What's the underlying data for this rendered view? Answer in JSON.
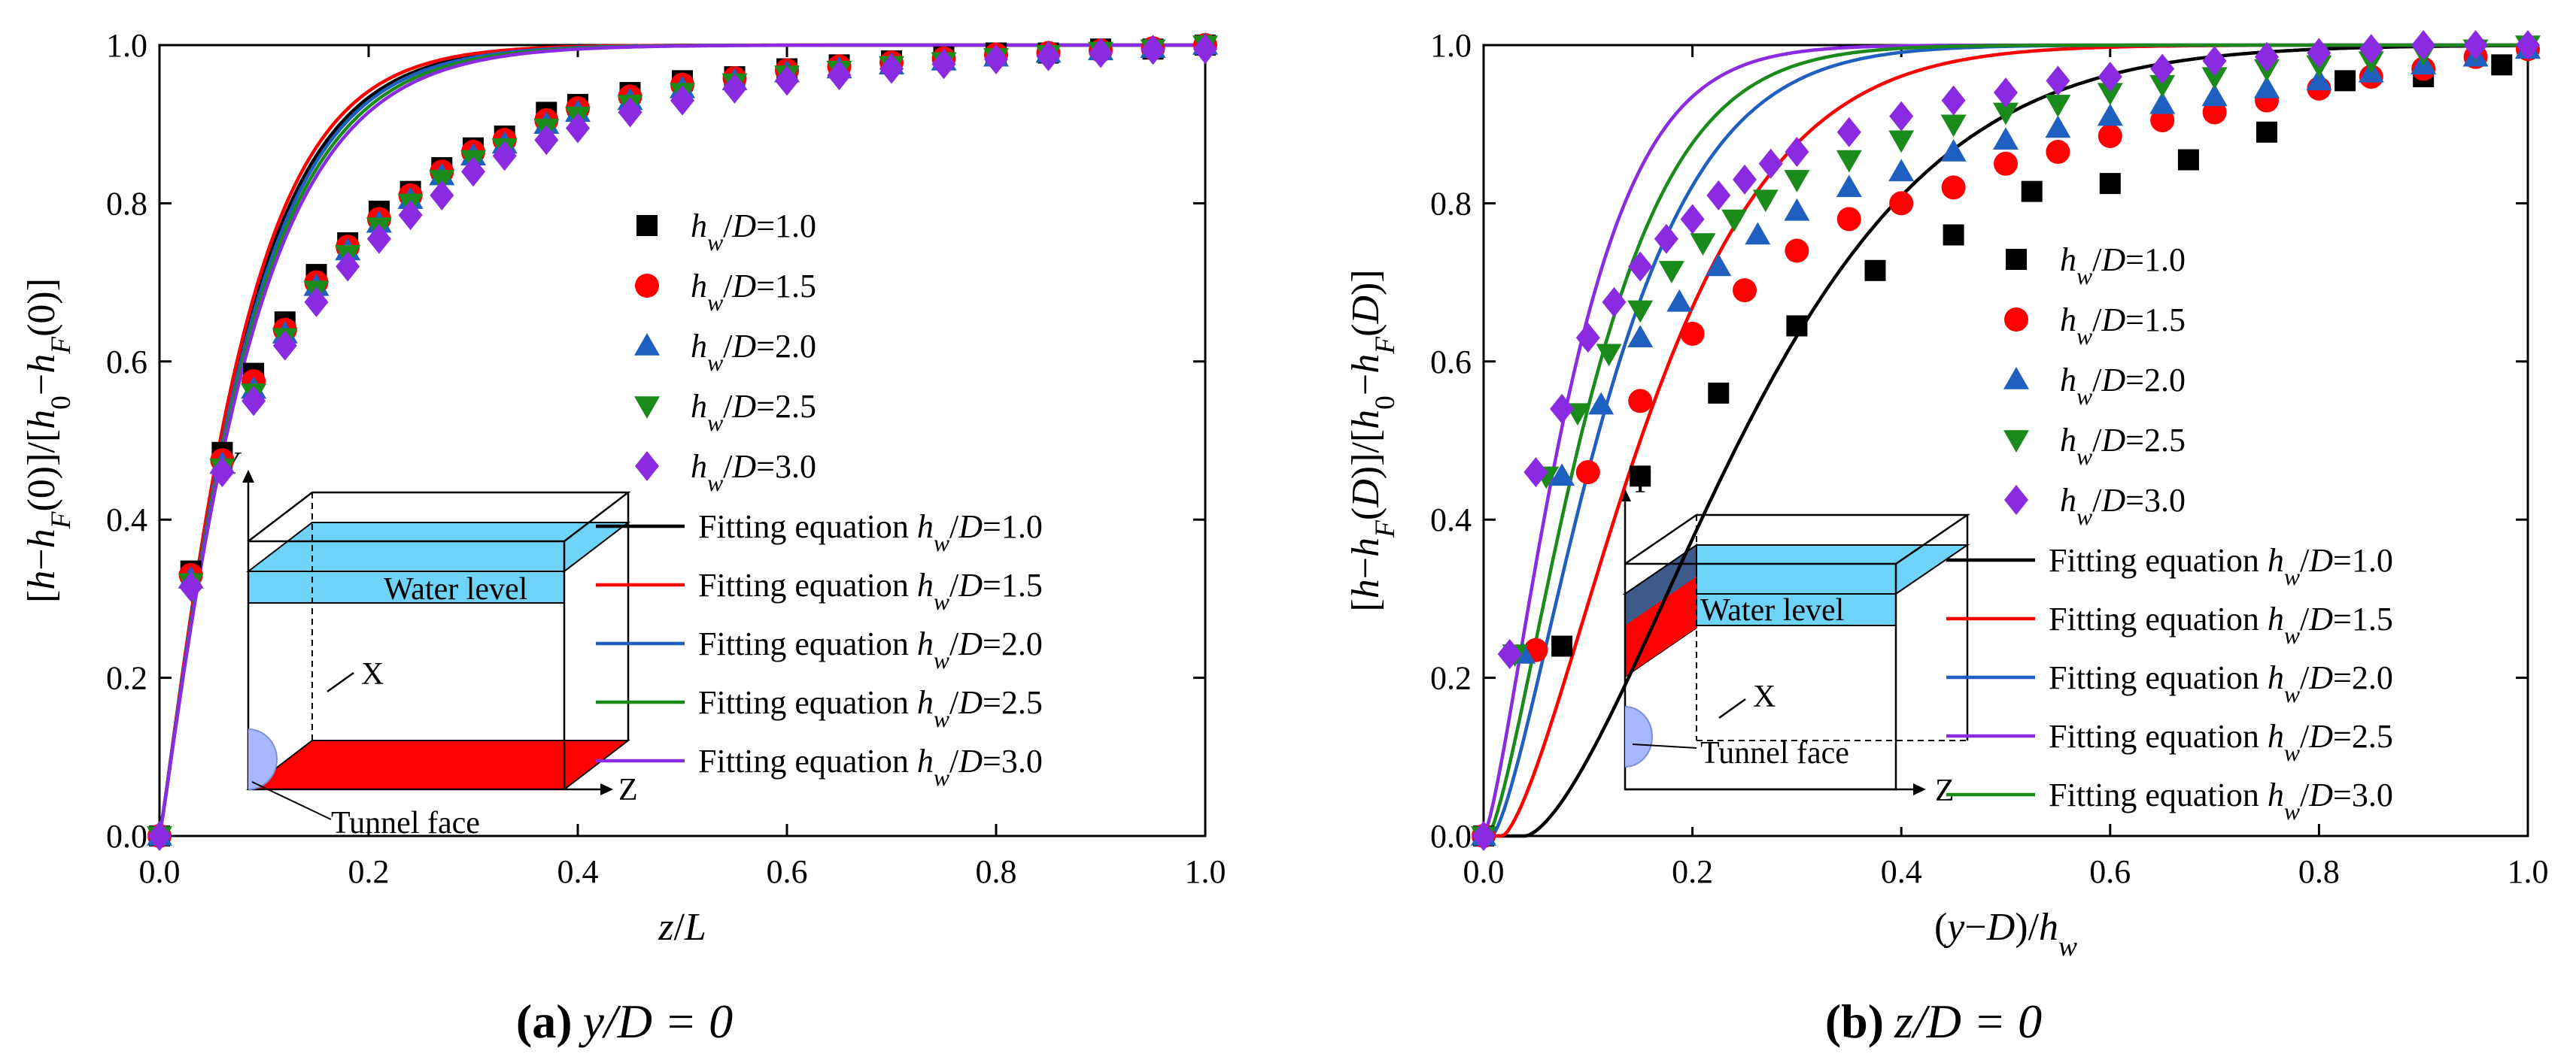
{
  "chart_data": [
    {
      "type": "line",
      "caption": {
        "letter": "(a)",
        "expr": "y/D = 0"
      },
      "xlabel": "z/L",
      "ylabel": "[h−hF(0)]/[h0−hF(0)]",
      "xlim": [
        0,
        1
      ],
      "ylim": [
        0,
        1
      ],
      "xticks": [
        "0.0",
        "0.2",
        "0.4",
        "0.6",
        "0.8",
        "1.0"
      ],
      "yticks": [
        "0.0",
        "0.2",
        "0.4",
        "0.6",
        "0.8",
        "1.0"
      ],
      "legend_position": "right",
      "scatter_series": [
        {
          "name": "hw/D=1.0",
          "label": "hw/D=1.0",
          "color": "#000000",
          "marker": "square",
          "x": [
            0,
            0.03,
            0.06,
            0.09,
            0.12,
            0.15,
            0.18,
            0.21,
            0.24,
            0.27,
            0.3,
            0.33,
            0.37,
            0.4,
            0.45,
            0.5,
            0.55,
            0.6,
            0.65,
            0.7,
            0.75,
            0.8,
            0.85,
            0.9,
            0.95,
            1.0
          ],
          "y": [
            0,
            0.335,
            0.485,
            0.585,
            0.65,
            0.71,
            0.75,
            0.79,
            0.815,
            0.845,
            0.87,
            0.885,
            0.915,
            0.925,
            0.94,
            0.955,
            0.96,
            0.97,
            0.975,
            0.98,
            0.985,
            0.99,
            0.99,
            0.995,
            0.995,
            1.0
          ]
        },
        {
          "name": "hw/D=1.5",
          "label": "hw/D=1.5",
          "color": "#ff0000",
          "marker": "circle",
          "x": [
            0,
            0.03,
            0.06,
            0.09,
            0.12,
            0.15,
            0.18,
            0.21,
            0.24,
            0.27,
            0.3,
            0.33,
            0.37,
            0.4,
            0.45,
            0.5,
            0.55,
            0.6,
            0.65,
            0.7,
            0.75,
            0.8,
            0.85,
            0.9,
            0.95,
            1.0
          ],
          "y": [
            0,
            0.33,
            0.475,
            0.575,
            0.64,
            0.7,
            0.745,
            0.78,
            0.81,
            0.84,
            0.865,
            0.88,
            0.905,
            0.92,
            0.935,
            0.95,
            0.958,
            0.968,
            0.973,
            0.978,
            0.983,
            0.988,
            0.99,
            0.993,
            0.996,
            1.0
          ]
        },
        {
          "name": "hw/D=2.0",
          "label": "hw/D=2.0",
          "color": "#1f5fbf",
          "marker": "triangle-up",
          "x": [
            0,
            0.03,
            0.06,
            0.09,
            0.12,
            0.15,
            0.18,
            0.21,
            0.24,
            0.27,
            0.3,
            0.33,
            0.37,
            0.4,
            0.45,
            0.5,
            0.55,
            0.6,
            0.65,
            0.7,
            0.75,
            0.8,
            0.85,
            0.9,
            0.95,
            1.0
          ],
          "y": [
            0,
            0.325,
            0.47,
            0.565,
            0.635,
            0.695,
            0.74,
            0.775,
            0.805,
            0.835,
            0.86,
            0.875,
            0.9,
            0.915,
            0.93,
            0.945,
            0.955,
            0.965,
            0.97,
            0.975,
            0.98,
            0.985,
            0.99,
            0.993,
            0.996,
            1.0
          ]
        },
        {
          "name": "hw/D=2.5",
          "label": "hw/D=2.5",
          "color": "#1a8a1a",
          "marker": "triangle-down",
          "x": [
            0,
            0.03,
            0.06,
            0.09,
            0.12,
            0.15,
            0.18,
            0.21,
            0.24,
            0.27,
            0.3,
            0.33,
            0.37,
            0.4,
            0.45,
            0.5,
            0.55,
            0.6,
            0.65,
            0.7,
            0.75,
            0.8,
            0.85,
            0.9,
            0.95,
            1.0
          ],
          "y": [
            0,
            0.32,
            0.465,
            0.56,
            0.63,
            0.69,
            0.735,
            0.77,
            0.8,
            0.83,
            0.855,
            0.87,
            0.895,
            0.91,
            0.925,
            0.94,
            0.952,
            0.962,
            0.968,
            0.974,
            0.979,
            0.984,
            0.988,
            0.992,
            0.995,
            1.0
          ]
        },
        {
          "name": "hw/D=3.0",
          "label": "hw/D=3.0",
          "color": "#8a2be2",
          "marker": "diamond",
          "x": [
            0,
            0.03,
            0.06,
            0.09,
            0.12,
            0.15,
            0.18,
            0.21,
            0.24,
            0.27,
            0.3,
            0.33,
            0.37,
            0.4,
            0.45,
            0.5,
            0.55,
            0.6,
            0.65,
            0.7,
            0.75,
            0.8,
            0.85,
            0.9,
            0.95,
            1.0
          ],
          "y": [
            0,
            0.315,
            0.46,
            0.55,
            0.62,
            0.675,
            0.72,
            0.755,
            0.785,
            0.81,
            0.84,
            0.86,
            0.88,
            0.895,
            0.915,
            0.93,
            0.945,
            0.955,
            0.962,
            0.97,
            0.976,
            0.982,
            0.986,
            0.99,
            0.994,
            0.995
          ]
        }
      ],
      "line_series": [
        {
          "name": "Fitting equation hw/D=1.0",
          "label": "Fitting equation hw/D=1.0",
          "color": "#000000",
          "a": 0.082,
          "b": 1.12,
          "shift": 0
        },
        {
          "name": "Fitting equation hw/D=1.5",
          "label": "Fitting equation hw/D=1.5",
          "color": "#ff0000",
          "a": 0.08,
          "b": 1.14,
          "shift": 0
        },
        {
          "name": "Fitting equation hw/D=2.0",
          "label": "Fitting equation hw/D=2.0",
          "color": "#1f5fbf",
          "a": 0.084,
          "b": 1.12,
          "shift": 0
        },
        {
          "name": "Fitting equation hw/D=2.5",
          "label": "Fitting equation hw/D=2.5",
          "color": "#1a8a1a",
          "a": 0.086,
          "b": 1.11,
          "shift": 0
        },
        {
          "name": "Fitting equation hw/D=3.0",
          "label": "Fitting equation hw/D=3.0",
          "color": "#8a2be2",
          "a": 0.088,
          "b": 1.1,
          "shift": 0
        }
      ],
      "inset": {
        "water_level": "Water level",
        "axis_y": "Y",
        "axis_x": "X",
        "axis_z": "Z",
        "face_label": "Tunnel face"
      }
    },
    {
      "type": "line",
      "caption": {
        "letter": "(b)",
        "expr": "z/D = 0"
      },
      "xlabel": "(y−D)/hw",
      "ylabel": "[h−hF(D)]/[h0−hF(D)]",
      "xlim": [
        0,
        1
      ],
      "ylim": [
        0,
        1
      ],
      "xticks": [
        "0.0",
        "0.2",
        "0.4",
        "0.6",
        "0.8",
        "1.0"
      ],
      "yticks": [
        "0.0",
        "0.2",
        "0.4",
        "0.6",
        "0.8",
        "1.0"
      ],
      "legend_position": "right",
      "scatter_series": [
        {
          "name": "hw/D=1.0",
          "label": "hw/D=1.0",
          "color": "#000000",
          "marker": "square",
          "x": [
            0,
            0.075,
            0.15,
            0.225,
            0.3,
            0.375,
            0.45,
            0.525,
            0.6,
            0.675,
            0.75,
            0.825,
            0.9,
            0.975
          ],
          "y": [
            0,
            0.24,
            0.455,
            0.56,
            0.645,
            0.715,
            0.76,
            0.815,
            0.825,
            0.855,
            0.89,
            0.955,
            0.96,
            0.975
          ]
        },
        {
          "name": "hw/D=1.5",
          "label": "hw/D=1.5",
          "color": "#ff0000",
          "marker": "circle",
          "x": [
            0,
            0.05,
            0.1,
            0.15,
            0.2,
            0.25,
            0.3,
            0.35,
            0.4,
            0.45,
            0.5,
            0.55,
            0.6,
            0.65,
            0.7,
            0.75,
            0.8,
            0.85,
            0.9,
            0.95,
            1.0
          ],
          "y": [
            0,
            0.235,
            0.46,
            0.55,
            0.635,
            0.69,
            0.74,
            0.78,
            0.8,
            0.82,
            0.85,
            0.865,
            0.885,
            0.905,
            0.915,
            0.93,
            0.945,
            0.96,
            0.97,
            0.985,
            0.995
          ]
        },
        {
          "name": "hw/D=2.0",
          "label": "hw/D=2.0",
          "color": "#1f5fbf",
          "marker": "triangle-up",
          "x": [
            0,
            0.0375,
            0.075,
            0.1125,
            0.15,
            0.1875,
            0.225,
            0.2625,
            0.3,
            0.35,
            0.4,
            0.45,
            0.5,
            0.55,
            0.6,
            0.65,
            0.7,
            0.75,
            0.8,
            0.85,
            0.9,
            0.95,
            1.0
          ],
          "y": [
            0,
            0.23,
            0.455,
            0.545,
            0.63,
            0.675,
            0.72,
            0.76,
            0.79,
            0.82,
            0.84,
            0.865,
            0.88,
            0.895,
            0.91,
            0.925,
            0.935,
            0.945,
            0.955,
            0.965,
            0.975,
            0.985,
            0.995
          ]
        },
        {
          "name": "hw/D=2.5",
          "label": "hw/D=2.5",
          "color": "#1a8a1a",
          "marker": "triangle-down",
          "x": [
            0,
            0.03,
            0.06,
            0.09,
            0.12,
            0.15,
            0.18,
            0.21,
            0.24,
            0.27,
            0.3,
            0.35,
            0.4,
            0.45,
            0.5,
            0.55,
            0.6,
            0.65,
            0.7,
            0.75,
            0.8,
            0.85,
            0.9,
            0.95,
            1.0
          ],
          "y": [
            0,
            0.23,
            0.455,
            0.535,
            0.61,
            0.665,
            0.715,
            0.75,
            0.78,
            0.805,
            0.83,
            0.855,
            0.88,
            0.9,
            0.915,
            0.925,
            0.94,
            0.95,
            0.96,
            0.97,
            0.975,
            0.98,
            0.99,
            0.995,
            1.0
          ]
        },
        {
          "name": "hw/D=3.0",
          "label": "hw/D=3.0",
          "color": "#8a2be2",
          "marker": "diamond",
          "x": [
            0,
            0.025,
            0.05,
            0.075,
            0.1,
            0.125,
            0.15,
            0.175,
            0.2,
            0.225,
            0.25,
            0.275,
            0.3,
            0.35,
            0.4,
            0.45,
            0.5,
            0.55,
            0.6,
            0.65,
            0.7,
            0.75,
            0.8,
            0.85,
            0.9,
            0.95,
            1.0
          ],
          "y": [
            0,
            0.23,
            0.46,
            0.54,
            0.63,
            0.675,
            0.72,
            0.755,
            0.78,
            0.81,
            0.83,
            0.85,
            0.865,
            0.89,
            0.91,
            0.93,
            0.94,
            0.955,
            0.96,
            0.97,
            0.98,
            0.985,
            0.99,
            0.995,
            1.0,
            1.0,
            1.0
          ]
        }
      ],
      "line_series": [
        {
          "name": "Fitting equation hw/D=1.0",
          "label": "Fitting equation hw/D=1.0",
          "color": "#000000",
          "a": 0.26,
          "b": 1.55,
          "shift": 0.04
        },
        {
          "name": "Fitting equation hw/D=1.5",
          "label": "Fitting equation hw/D=1.5",
          "color": "#ff0000",
          "a": 0.17,
          "b": 1.45,
          "shift": 0.018
        },
        {
          "name": "Fitting equation hw/D=2.0",
          "label": "Fitting equation hw/D=2.0",
          "color": "#1f5fbf",
          "a": 0.13,
          "b": 1.4,
          "shift": 0.008
        },
        {
          "name": "Fitting equation hw/D=2.5",
          "label": "Fitting equation hw/D=2.5",
          "color": "#8a2be2",
          "a": 0.095,
          "b": 1.35,
          "shift": 0.0
        },
        {
          "name": "Fitting equation hw/D=3.0",
          "label": "Fitting equation hw/D=3.0",
          "color": "#1a8a1a",
          "a": 0.115,
          "b": 1.38,
          "shift": 0.004
        }
      ],
      "inset": {
        "water_level": "Water level",
        "axis_y": "Y",
        "axis_x": "X",
        "axis_z": "Z",
        "face_label": "Tunnel face"
      }
    }
  ]
}
